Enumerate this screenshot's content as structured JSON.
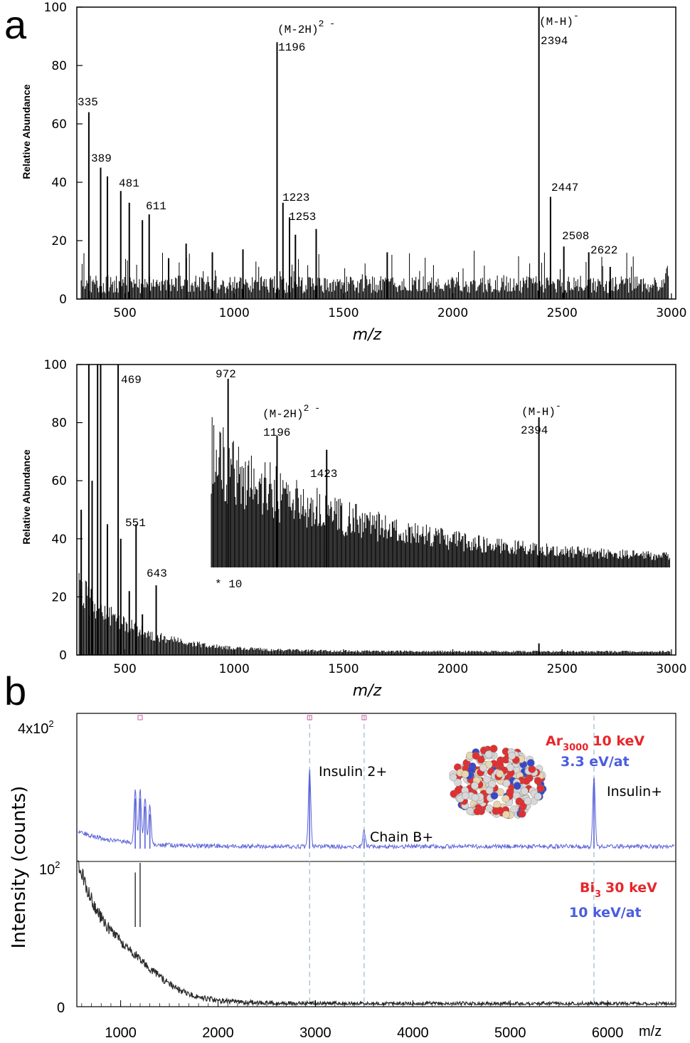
{
  "labels": {
    "a": "a",
    "b": "b",
    "times10": "* 10",
    "b_ylabel": "Intensity (counts)",
    "b_xunit": "m/z",
    "b_ytick_top_base": "4x10",
    "b_ytick_top_exp": "2",
    "b_ytick_mid_base": "10",
    "b_ytick_mid_exp": "2",
    "b_ytick_zero": "0"
  },
  "colors": {
    "upper_trace": "#5b64d8",
    "lower_trace": "#2b2b2b",
    "ar_label": "#e8262b",
    "energy_label": "#4a5ce0",
    "marker_ticks": "#d45aa0",
    "guide_lines": "#9ab8d0"
  },
  "chart_data": [
    {
      "type": "bar",
      "xlabel": "m/z",
      "ylabel": "Relative Abundance",
      "xlim": [
        280,
        3020
      ],
      "ylim": [
        0,
        100
      ],
      "xticks": [
        500,
        1000,
        1500,
        2000,
        2500,
        3000
      ],
      "yticks": [
        0,
        20,
        40,
        60,
        80,
        100
      ],
      "peaks": [
        {
          "x": 335,
          "y": 64
        },
        {
          "x": 389,
          "y": 45
        },
        {
          "x": 420,
          "y": 42
        },
        {
          "x": 481,
          "y": 37
        },
        {
          "x": 520,
          "y": 33
        },
        {
          "x": 580,
          "y": 27
        },
        {
          "x": 611,
          "y": 29
        },
        {
          "x": 700,
          "y": 14
        },
        {
          "x": 780,
          "y": 19
        },
        {
          "x": 900,
          "y": 16
        },
        {
          "x": 1040,
          "y": 17
        },
        {
          "x": 1196,
          "y": 88
        },
        {
          "x": 1223,
          "y": 33
        },
        {
          "x": 1253,
          "y": 28
        },
        {
          "x": 1280,
          "y": 22
        },
        {
          "x": 1375,
          "y": 24
        },
        {
          "x": 1700,
          "y": 16
        },
        {
          "x": 2394,
          "y": 100
        },
        {
          "x": 2447,
          "y": 35
        },
        {
          "x": 2508,
          "y": 18
        },
        {
          "x": 2622,
          "y": 16
        },
        {
          "x": 2720,
          "y": 11
        }
      ],
      "annotations": [
        {
          "text": "335",
          "x": 335
        },
        {
          "text": "389",
          "x": 389
        },
        {
          "text": "481",
          "x": 481
        },
        {
          "text": "611",
          "x": 611
        },
        {
          "text": "(M-2H)",
          "sup": "2 -",
          "x": 1196
        },
        {
          "text": "1196",
          "x": 1196
        },
        {
          "text": "1223",
          "x": 1223
        },
        {
          "text": "1253",
          "x": 1253
        },
        {
          "text": "(M-H)",
          "sup": "-",
          "x": 2394
        },
        {
          "text": "2394",
          "x": 2394
        },
        {
          "text": "2447",
          "x": 2447
        },
        {
          "text": "2508",
          "x": 2508
        },
        {
          "text": "2622",
          "x": 2622
        }
      ]
    },
    {
      "type": "bar",
      "xlabel": "m/z",
      "ylabel": "Relative Abundance",
      "xlim": [
        280,
        3020
      ],
      "ylim": [
        0,
        100
      ],
      "xticks": [
        500,
        1000,
        1500,
        2000,
        2500,
        3000
      ],
      "yticks": [
        0,
        20,
        40,
        60,
        80,
        100
      ],
      "peaks": [
        {
          "x": 300,
          "y": 50
        },
        {
          "x": 335,
          "y": 100
        },
        {
          "x": 350,
          "y": 60
        },
        {
          "x": 375,
          "y": 100
        },
        {
          "x": 389,
          "y": 100
        },
        {
          "x": 420,
          "y": 45
        },
        {
          "x": 469,
          "y": 100
        },
        {
          "x": 481,
          "y": 40
        },
        {
          "x": 520,
          "y": 22
        },
        {
          "x": 551,
          "y": 45
        },
        {
          "x": 580,
          "y": 14
        },
        {
          "x": 643,
          "y": 24
        },
        {
          "x": 2394,
          "y": 4
        }
      ],
      "inset": {
        "label": "* 10",
        "peaks": [
          {
            "x": 972,
            "y": 93
          },
          {
            "x": 1196,
            "y": 65
          },
          {
            "x": 1423,
            "y": 58
          },
          {
            "x": 2394,
            "y": 74
          }
        ]
      },
      "annotations": [
        {
          "text": "469",
          "x": 469
        },
        {
          "text": "551",
          "x": 551
        },
        {
          "text": "643",
          "x": 643
        },
        {
          "text": "972",
          "x": 972
        },
        {
          "text": "(M-2H)",
          "sup": "2 -",
          "x": 1196
        },
        {
          "text": "1196",
          "x": 1196
        },
        {
          "text": "1423",
          "x": 1423
        },
        {
          "text": "(M-H)",
          "sup": "-",
          "x": 2394
        },
        {
          "text": "2394",
          "x": 2394
        }
      ]
    },
    {
      "type": "line",
      "xlabel": "m/z",
      "ylabel": "Intensity (counts)",
      "xlim": [
        550,
        6700
      ],
      "xticks": [
        1000,
        2000,
        3000,
        4000,
        5000,
        6000
      ],
      "guide_lines_x": [
        2940,
        3500,
        5860
      ],
      "series": [
        {
          "name": "Ar3000 10 keV",
          "peaks": [
            {
              "x": 1150,
              "y": 0.7
            },
            {
              "x": 1200,
              "y": 0.7
            },
            {
              "x": 1250,
              "y": 0.6
            },
            {
              "x": 1300,
              "y": 0.5
            },
            {
              "x": 2940,
              "y": 1.0
            },
            {
              "x": 3500,
              "y": 0.2
            },
            {
              "x": 5860,
              "y": 0.9
            }
          ]
        },
        {
          "name": "Bi3 30 keV",
          "peaks": [
            {
              "x": 1150,
              "y": 0.85
            },
            {
              "x": 1200,
              "y": 1.0
            }
          ]
        }
      ],
      "annotations": [
        {
          "text": "Insulin 2+",
          "x": 2940
        },
        {
          "text": "Chain B+",
          "x": 3500
        },
        {
          "text": "Insulin+",
          "x": 5860
        }
      ],
      "ion_labels": [
        {
          "species": "Ar",
          "sub": "3000",
          "energy": "10 keV",
          "per_atom": "3.3 eV/at"
        },
        {
          "species": "Bi",
          "sub": "3",
          "energy": "30 keV",
          "per_atom": "10 keV/at"
        }
      ]
    }
  ]
}
